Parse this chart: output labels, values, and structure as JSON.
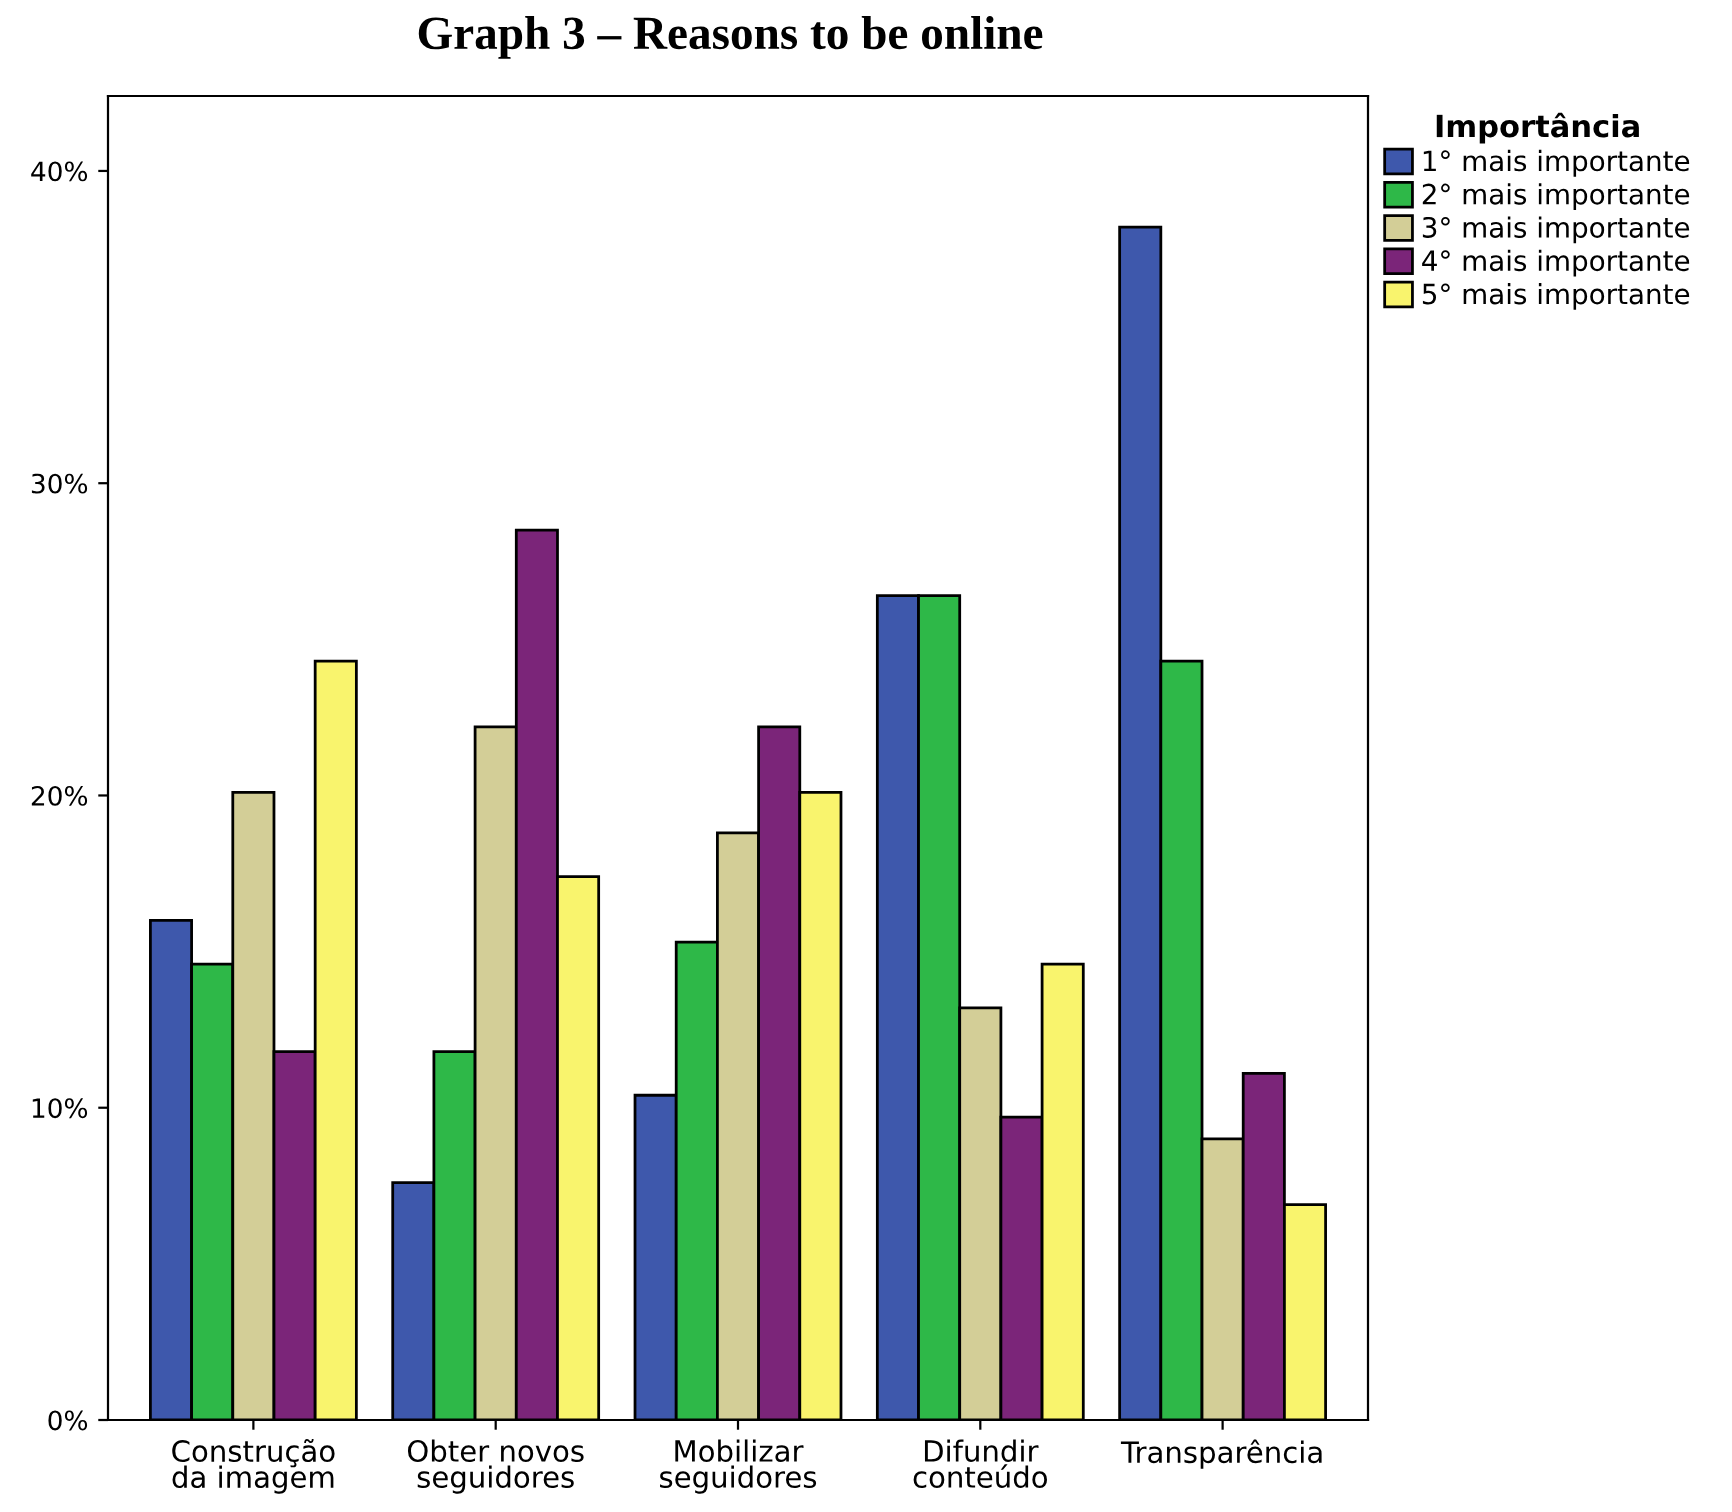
{
  "chart_data": {
    "type": "bar",
    "title": "Graph 3 – Reasons to be online",
    "legend_title": "Importância",
    "categories": [
      "Construção\nda imagem",
      "Obter novos\nseguidores",
      "Mobilizar\nseguidores",
      "Difundir\nconteúdo",
      "Transparência"
    ],
    "series": [
      {
        "name": "1° mais importante",
        "color": "#3e58ac",
        "values": [
          16.0,
          7.6,
          10.4,
          26.4,
          38.2
        ]
      },
      {
        "name": "2° mais importante",
        "color": "#2eb848",
        "values": [
          14.6,
          11.8,
          15.3,
          26.4,
          24.3
        ]
      },
      {
        "name": "3° mais importante",
        "color": "#d3ce97",
        "values": [
          20.1,
          22.2,
          18.8,
          13.2,
          9.0
        ]
      },
      {
        "name": "4° mais importante",
        "color": "#7b2579",
        "values": [
          11.8,
          28.5,
          22.2,
          9.7,
          11.1
        ]
      },
      {
        "name": "5° mais importante",
        "color": "#f9f46d",
        "values": [
          24.3,
          17.4,
          20.1,
          14.6,
          6.9
        ]
      }
    ],
    "ylim": [
      0,
      42.4
    ],
    "yticks": [
      {
        "value": 0,
        "label": "0%"
      },
      {
        "value": 10,
        "label": "10%"
      },
      {
        "value": 20,
        "label": "20%"
      },
      {
        "value": 30,
        "label": "30%"
      },
      {
        "value": 40,
        "label": "40%"
      }
    ],
    "grid": false,
    "legend": "top right"
  }
}
